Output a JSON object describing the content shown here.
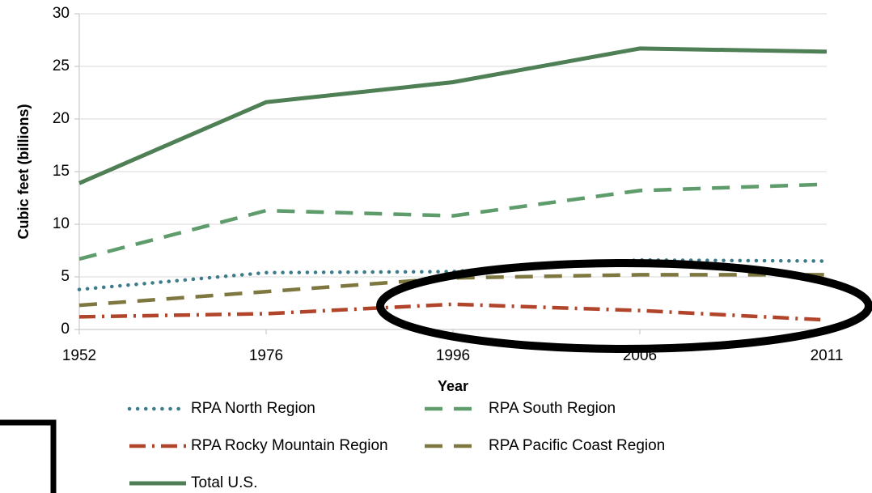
{
  "chart_data": {
    "type": "line",
    "x_label": "Year",
    "y_label": "Cubic feet (billions)",
    "categories": [
      "1952",
      "1976",
      "1996",
      "2006",
      "2011"
    ],
    "series": [
      {
        "name": "RPA North Region",
        "color": "#3b7b8a",
        "dash": "dot",
        "values": [
          3.8,
          5.4,
          5.5,
          6.6,
          6.5
        ]
      },
      {
        "name": "RPA South Region",
        "color": "#5e9c6c",
        "dash": "dash",
        "values": [
          6.7,
          11.3,
          10.8,
          13.2,
          13.8
        ]
      },
      {
        "name": "RPA Rocky Mountain Region",
        "color": "#b0452b",
        "dash": "dashdot",
        "values": [
          1.2,
          1.5,
          2.4,
          1.8,
          0.9
        ]
      },
      {
        "name": "RPA Pacific Coast Region",
        "color": "#7e7840",
        "dash": "dash",
        "values": [
          2.3,
          3.6,
          4.9,
          5.2,
          5.2
        ]
      },
      {
        "name": "Total U.S.",
        "color": "#4f7f54",
        "dash": "solid",
        "values": [
          13.9,
          21.6,
          23.5,
          26.7,
          26.4
        ]
      }
    ],
    "ylim": [
      0,
      30
    ],
    "yticks": [
      0,
      5,
      10,
      15,
      20,
      25,
      30
    ],
    "grid": true,
    "legend": "bottom"
  }
}
